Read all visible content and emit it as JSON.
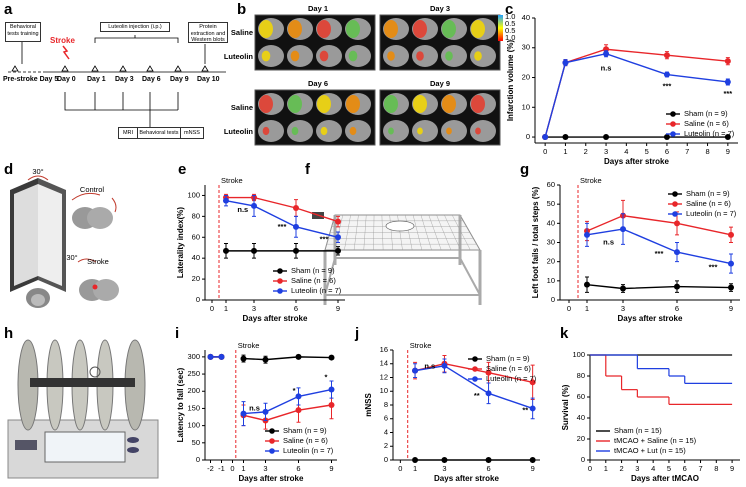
{
  "panels": [
    "a",
    "b",
    "c",
    "d",
    "e",
    "f",
    "g",
    "h",
    "i",
    "j",
    "k"
  ],
  "diagrams": {
    "a": {
      "training": "Behavioral tests training",
      "stroke": "Stroke",
      "injection": "Luteolin injection (i.p.)",
      "protein": "Protein extraction and Western blots",
      "days": [
        "Pre-stroke Day 5",
        "Day 0",
        "Day 1",
        "Day 3",
        "Day 6",
        "Day 9",
        "Day 10"
      ],
      "tests": [
        "MRI",
        "Behavioral tests",
        "mNSS"
      ]
    },
    "b": {
      "days": [
        "Day 1",
        "Day 3",
        "Day 6",
        "Day 9"
      ],
      "rows": [
        "Saline",
        "Luteolin"
      ],
      "colorbar": [
        "1.0",
        "0.5",
        "0.5",
        "1.0"
      ]
    },
    "d": {
      "angle_top": "30°",
      "control": "Control",
      "angle_stroke": "30°",
      "stroke": "Stroke"
    }
  },
  "chart_data": [
    {
      "type": "line",
      "ylabel": "Infarction volume (%)",
      "xlabel": "Days after stroke",
      "xlim": [
        -0.5,
        9.5
      ],
      "xticks": [
        0,
        1,
        2,
        3,
        4,
        5,
        6,
        7,
        8,
        9
      ],
      "ylim": [
        -2,
        40
      ],
      "yticks": [
        0,
        10,
        20,
        30,
        40
      ],
      "legend": "lower right",
      "series": [
        {
          "name": "Sham (n = 9)",
          "color": "#000000",
          "x": [
            0,
            1,
            3,
            6,
            9
          ],
          "values": [
            0,
            0,
            0,
            0,
            0
          ]
        },
        {
          "name": "Saline (n = 6)",
          "color": "#e8262a",
          "x": [
            0,
            1,
            3,
            6,
            9
          ],
          "values": [
            0,
            25,
            29.5,
            27.5,
            25.5
          ],
          "errors": [
            0,
            1,
            1.5,
            1.2,
            1.2
          ]
        },
        {
          "name": "Luteolin (n = 7)",
          "color": "#1f3fe0",
          "x": [
            0,
            1,
            3,
            6,
            9
          ],
          "values": [
            0,
            25,
            28,
            21,
            18.5
          ],
          "errors": [
            0,
            1,
            1,
            0.8,
            1
          ]
        }
      ],
      "annotations": [
        "n.s",
        "***",
        "***"
      ]
    },
    {
      "type": "line",
      "ylabel": "Laterality index(%)",
      "xlabel": "Days after stroke",
      "xlim": [
        -0.5,
        9.5
      ],
      "xticks": [
        0,
        1,
        3,
        6,
        9
      ],
      "ylim": [
        0,
        110
      ],
      "yticks": [
        0,
        20,
        40,
        60,
        80,
        100
      ],
      "legend": "lower right",
      "stroke_line": {
        "x": 0.5,
        "label": "Stroke"
      },
      "series": [
        {
          "name": "Sham (n = 9)",
          "color": "#000000",
          "x": [
            1,
            3,
            6,
            9
          ],
          "values": [
            47,
            47,
            47,
            47
          ],
          "errors": [
            7,
            7,
            7,
            4
          ]
        },
        {
          "name": "Saline (n = 6)",
          "color": "#e8262a",
          "x": [
            1,
            3,
            6,
            9
          ],
          "values": [
            98,
            98,
            88,
            75
          ],
          "errors": [
            3,
            3,
            8,
            5
          ]
        },
        {
          "name": "Luteolin (n = 7)",
          "color": "#1f3fe0",
          "x": [
            1,
            3,
            6,
            9
          ],
          "values": [
            95,
            90,
            70,
            60
          ],
          "errors": [
            5,
            10,
            10,
            5
          ]
        }
      ],
      "annotations": [
        "n.s",
        "***",
        "***"
      ]
    },
    {
      "type": "line",
      "ylabel": "Left foot fails / total steps (%)",
      "xlabel": "Days after stroke",
      "xlim": [
        -0.5,
        9.5
      ],
      "xticks": [
        0,
        1,
        3,
        6,
        9
      ],
      "ylim": [
        0,
        60
      ],
      "yticks": [
        0,
        10,
        20,
        30,
        40,
        50,
        60
      ],
      "legend": "upper right",
      "stroke_line": {
        "x": 0.5,
        "label": "Stroke"
      },
      "series": [
        {
          "name": "Sham (n = 9)",
          "color": "#000000",
          "x": [
            1,
            3,
            6,
            9
          ],
          "values": [
            8,
            6,
            7,
            6.5
          ],
          "errors": [
            4,
            2,
            3,
            2
          ]
        },
        {
          "name": "Saline (n = 6)",
          "color": "#e8262a",
          "x": [
            1,
            3,
            6,
            9
          ],
          "values": [
            36,
            44,
            40,
            34
          ],
          "errors": [
            5,
            8,
            6,
            4
          ]
        },
        {
          "name": "Luteolin (n = 7)",
          "color": "#1f3fe0",
          "x": [
            1,
            3,
            6,
            9
          ],
          "values": [
            34,
            37,
            25,
            19
          ],
          "errors": [
            6,
            8,
            5,
            5
          ]
        }
      ],
      "annotations": [
        "n.s",
        "***",
        "***"
      ]
    },
    {
      "type": "line",
      "ylabel": "Latency to fall (sec)",
      "xlabel": "Days after stroke",
      "xlim": [
        -2.5,
        9.5
      ],
      "xticks": [
        -2,
        -1,
        0,
        1,
        3,
        6,
        9
      ],
      "ylim": [
        0,
        320
      ],
      "yticks": [
        0,
        50,
        100,
        150,
        200,
        250,
        300
      ],
      "legend": "lower right",
      "stroke_line": {
        "x": 0.3,
        "label": "Stroke"
      },
      "series": [
        {
          "name": "Sham (n = 9)",
          "color": "#000000",
          "x": [
            -2,
            -1,
            0,
            1,
            3,
            6,
            9
          ],
          "values": [
            300,
            300,
            null,
            295,
            292,
            300,
            298
          ],
          "errors": [
            0,
            0,
            null,
            10,
            10,
            5,
            5
          ]
        },
        {
          "name": "Saline (n = 6)",
          "color": "#e8262a",
          "x": [
            -2,
            -1,
            0,
            1,
            3,
            6,
            9
          ],
          "values": [
            300,
            300,
            null,
            130,
            115,
            145,
            160
          ],
          "errors": [
            0,
            0,
            null,
            30,
            25,
            35,
            40
          ]
        },
        {
          "name": "Luteolin (n = 7)",
          "color": "#1f3fe0",
          "x": [
            -2,
            -1,
            0,
            1,
            3,
            6,
            9
          ],
          "values": [
            300,
            300,
            null,
            135,
            140,
            185,
            205
          ],
          "errors": [
            0,
            0,
            null,
            35,
            25,
            25,
            25
          ]
        }
      ],
      "annotations": [
        "n.s",
        "*",
        "*"
      ]
    },
    {
      "type": "line",
      "ylabel": "mNSS",
      "xlabel": "Days after stroke",
      "xlim": [
        -0.5,
        9.5
      ],
      "xticks": [
        0,
        1,
        3,
        6,
        9
      ],
      "ylim": [
        0,
        16
      ],
      "yticks": [
        0,
        2,
        4,
        6,
        8,
        10,
        12,
        14,
        16
      ],
      "legend": "upper right",
      "stroke_line": {
        "x": 0.5,
        "label": "Stroke"
      },
      "series": [
        {
          "name": "Sham (n = 9)",
          "color": "#000000",
          "x": [
            1,
            3,
            6,
            9
          ],
          "values": [
            0,
            0,
            0,
            0
          ]
        },
        {
          "name": "Saline (n = 6)",
          "color": "#e8262a",
          "x": [
            1,
            3,
            6,
            9
          ],
          "values": [
            13,
            14,
            12.7,
            11.3
          ],
          "errors": [
            1.2,
            1.2,
            1.5,
            2.5
          ]
        },
        {
          "name": "Luteolin (n = 7)",
          "color": "#1f3fe0",
          "x": [
            1,
            3,
            6,
            9
          ],
          "values": [
            13,
            13.7,
            9.7,
            7.5
          ],
          "errors": [
            1,
            1,
            1.5,
            1.5
          ]
        }
      ],
      "annotations": [
        "n.s",
        "**",
        "**"
      ]
    },
    {
      "type": "step",
      "ylabel": "Survival (%)",
      "xlabel": "Days after tMCAO",
      "xlim": [
        0,
        9.5
      ],
      "xticks": [
        0,
        1,
        2,
        3,
        4,
        5,
        6,
        7,
        8,
        9
      ],
      "ylim": [
        0,
        100
      ],
      "yticks": [
        0,
        20,
        40,
        60,
        80,
        100
      ],
      "legend": "lower left",
      "series": [
        {
          "name": "Sham (n = 15)",
          "color": "#000000",
          "x": [
            0
          ],
          "values": [
            100
          ]
        },
        {
          "name": "tMCAO + Saline (n = 15)",
          "color": "#e8262a",
          "x": [
            0,
            1,
            2,
            3,
            5
          ],
          "values": [
            100,
            80,
            67,
            60,
            53
          ]
        },
        {
          "name": "tMCAO + Lut (n = 15)",
          "color": "#1f3fe0",
          "x": [
            0,
            3,
            5,
            6
          ],
          "values": [
            100,
            87,
            80,
            73
          ]
        }
      ]
    }
  ]
}
